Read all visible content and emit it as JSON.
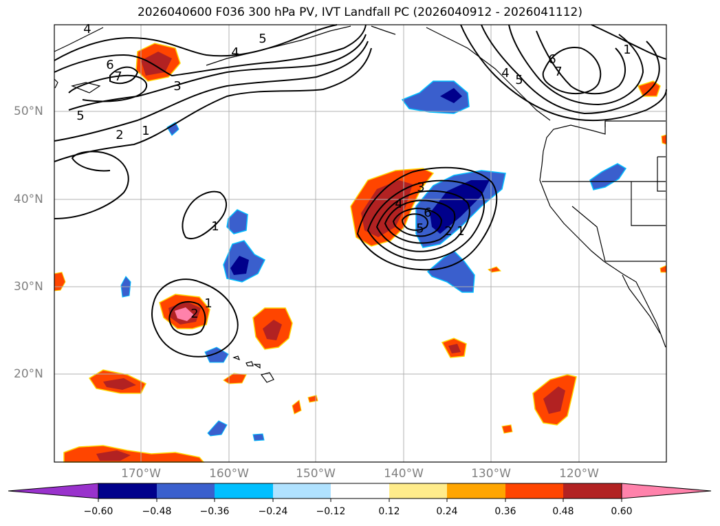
{
  "title": "2026040600 F036 300 hPa PV, IVT Landfall PC (2026040912 - 2026041112)",
  "lat_labels": [
    "50°N",
    "40°N",
    "30°N",
    "20°N"
  ],
  "lon_labels": [
    "170°W",
    "160°W",
    "150°W",
    "140°W",
    "130°W",
    "120°W"
  ],
  "colorbar": {
    "ticks": [
      "−0.60",
      "−0.48",
      "−0.36",
      "−0.24",
      "−0.12",
      "0.12",
      "0.24",
      "0.36",
      "0.48",
      "0.60"
    ],
    "colors": [
      "#9932cc",
      "#00008b",
      "#3a5fcd",
      "#00bfff",
      "#b0e2ff",
      "#ffffff",
      "#ffec8b",
      "#ffa500",
      "#ff4500",
      "#b22222",
      "#ff82ab"
    ]
  },
  "contour_labels": {
    "nw": [
      "4",
      "6",
      "7",
      "5",
      "3",
      "2",
      "1",
      "4",
      "5"
    ],
    "ne": [
      "6",
      "7",
      "4",
      "5",
      "1"
    ],
    "center": [
      "3",
      "4",
      "5",
      "6",
      "2",
      "1"
    ],
    "west": [
      "1",
      "1",
      "2"
    ]
  },
  "colors": {
    "blue_dark": "#00008b",
    "blue_mid": "#3a5fcd",
    "red_dark": "#b22222",
    "orange": "#ff4500",
    "pink": "#ff82ab"
  }
}
